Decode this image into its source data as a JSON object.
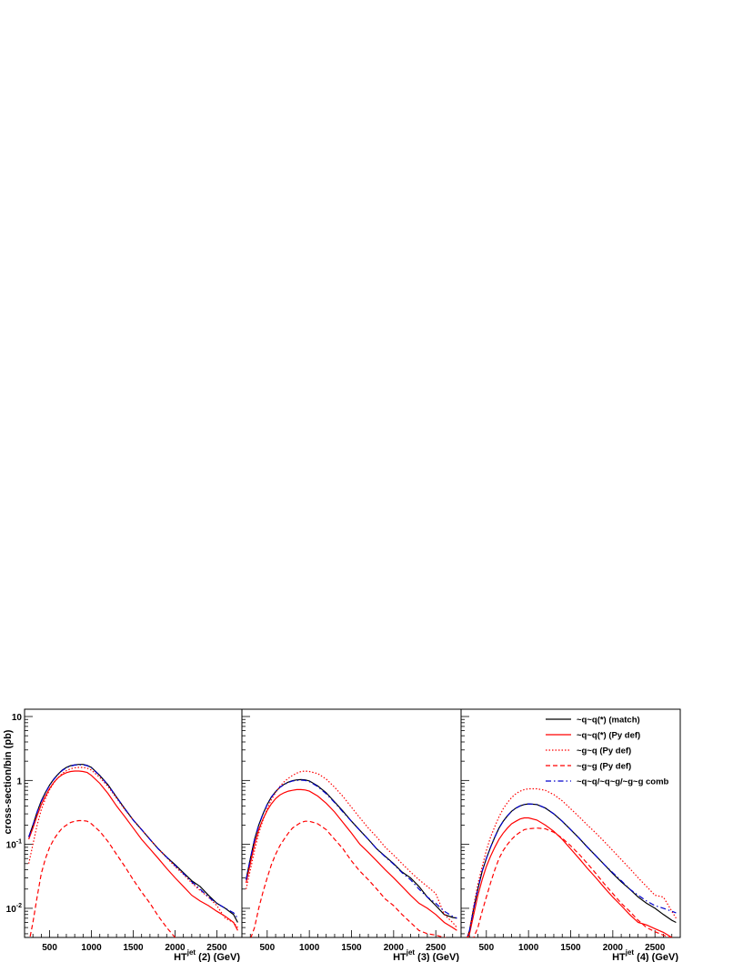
{
  "figure": {
    "ylabel": "cross-section/bin (pb)"
  },
  "legend": {
    "placement": "top-right of right panel",
    "entries": [
      {
        "label": "~q~q(*) (match)",
        "color": "#000000",
        "style": "solid"
      },
      {
        "label": "~q~q(*) (Py def)",
        "color": "#ff0000",
        "style": "solid"
      },
      {
        "label": "~g~q (Py def)",
        "color": "#ff0000",
        "style": "dotted"
      },
      {
        "label": "~g~g (Py def)",
        "color": "#ff0000",
        "style": "dashed"
      },
      {
        "label": "~q~q/~q~g/~g~g comb",
        "color": "#0000cc",
        "style": "dashdot"
      }
    ]
  },
  "chart_data": [
    {
      "type": "line",
      "xlabel_main": "HT",
      "xlabel_sup": "jet",
      "xlabel_rest": "(2) (GeV)",
      "xlim": [
        200,
        2800
      ],
      "ylim": [
        0.0035,
        13
      ],
      "yscale": "log",
      "xticks": [
        500,
        1000,
        1500,
        2000,
        2500
      ],
      "yticks": [
        {
          "v": 0.01,
          "base": "10",
          "exp": "-2"
        },
        {
          "v": 0.1,
          "base": "10",
          "exp": "-1"
        },
        {
          "v": 1,
          "base": "1",
          "exp": ""
        },
        {
          "v": 10,
          "base": "10",
          "exp": ""
        }
      ],
      "x": [
        250,
        300,
        350,
        400,
        450,
        500,
        550,
        600,
        650,
        700,
        750,
        800,
        850,
        900,
        950,
        1000,
        1100,
        1200,
        1300,
        1400,
        1500,
        1600,
        1700,
        1800,
        1900,
        2000,
        2100,
        2200,
        2300,
        2400,
        2500,
        2600,
        2700,
        2750
      ],
      "series": [
        {
          "name": "~q~q(*) (match)",
          "color": "#000000",
          "style": "solid",
          "values": [
            0.13,
            0.2,
            0.32,
            0.48,
            0.65,
            0.85,
            1.05,
            1.25,
            1.45,
            1.6,
            1.7,
            1.75,
            1.78,
            1.78,
            1.72,
            1.6,
            1.2,
            0.85,
            0.55,
            0.36,
            0.24,
            0.17,
            0.12,
            0.085,
            0.063,
            0.048,
            0.036,
            0.027,
            0.022,
            0.016,
            0.012,
            0.01,
            0.008,
            0.006
          ]
        },
        {
          "name": "~q~q(*) (Py def)",
          "color": "#ff0000",
          "style": "solid",
          "values": [
            0.12,
            0.18,
            0.28,
            0.42,
            0.57,
            0.75,
            0.93,
            1.1,
            1.23,
            1.32,
            1.38,
            1.4,
            1.4,
            1.38,
            1.33,
            1.2,
            0.9,
            0.62,
            0.4,
            0.27,
            0.18,
            0.12,
            0.085,
            0.06,
            0.042,
            0.03,
            0.022,
            0.016,
            0.013,
            0.011,
            0.009,
            0.0075,
            0.006,
            0.0045
          ]
        },
        {
          "name": "~g~q (Py def)",
          "color": "#ff0000",
          "style": "dotted",
          "values": [
            0.05,
            0.1,
            0.2,
            0.35,
            0.52,
            0.72,
            0.92,
            1.1,
            1.28,
            1.42,
            1.52,
            1.58,
            1.6,
            1.6,
            1.55,
            1.45,
            1.12,
            0.8,
            0.53,
            0.35,
            0.24,
            0.17,
            0.12,
            0.085,
            0.062,
            0.045,
            0.034,
            0.025,
            0.019,
            0.015,
            0.011,
            0.007,
            0.006,
            0.005
          ]
        },
        {
          "name": "~g~g (Py def)",
          "color": "#ff0000",
          "style": "dashed",
          "values": [
            0.0028,
            0.006,
            0.015,
            0.035,
            0.06,
            0.09,
            0.12,
            0.15,
            0.18,
            0.2,
            0.22,
            0.23,
            0.235,
            0.235,
            0.23,
            0.21,
            0.16,
            0.11,
            0.07,
            0.045,
            0.028,
            0.018,
            0.012,
            0.0075,
            0.005,
            0.0035,
            0.003,
            0.003,
            0.003,
            0.003,
            0.003,
            0.003,
            0.003,
            0.003
          ]
        },
        {
          "name": "~q~q/~q~g/~g~g comb",
          "color": "#0000cc",
          "style": "dashdot",
          "values": [
            0.13,
            0.2,
            0.32,
            0.47,
            0.64,
            0.84,
            1.04,
            1.24,
            1.43,
            1.58,
            1.68,
            1.74,
            1.76,
            1.76,
            1.7,
            1.58,
            1.19,
            0.84,
            0.55,
            0.36,
            0.24,
            0.17,
            0.12,
            0.085,
            0.063,
            0.047,
            0.035,
            0.026,
            0.02,
            0.015,
            0.012,
            0.01,
            0.0085,
            0.007
          ]
        }
      ]
    },
    {
      "type": "line",
      "xlabel_main": "HT",
      "xlabel_sup": "jet",
      "xlabel_rest": "(3) (GeV)",
      "xlim": [
        200,
        2800
      ],
      "ylim": [
        0.0035,
        13
      ],
      "yscale": "log",
      "xticks": [
        500,
        1000,
        1500,
        2000,
        2500
      ],
      "x": [
        250,
        300,
        350,
        400,
        450,
        500,
        550,
        600,
        650,
        700,
        750,
        800,
        850,
        900,
        950,
        1000,
        1100,
        1200,
        1300,
        1400,
        1500,
        1600,
        1700,
        1800,
        1900,
        2000,
        2100,
        2200,
        2300,
        2400,
        2500,
        2600,
        2700,
        2750
      ],
      "series": [
        {
          "name": "~q~q(*) (match)",
          "color": "#000000",
          "style": "solid",
          "values": [
            0.028,
            0.06,
            0.12,
            0.2,
            0.3,
            0.42,
            0.55,
            0.67,
            0.78,
            0.87,
            0.94,
            0.99,
            1.02,
            1.03,
            1.02,
            0.98,
            0.82,
            0.64,
            0.46,
            0.33,
            0.23,
            0.165,
            0.12,
            0.085,
            0.065,
            0.05,
            0.037,
            0.03,
            0.022,
            0.015,
            0.011,
            0.008,
            0.0072,
            0.007
          ]
        },
        {
          "name": "~q~q(*) (Py def)",
          "color": "#ff0000",
          "style": "solid",
          "values": [
            0.025,
            0.05,
            0.1,
            0.17,
            0.25,
            0.34,
            0.43,
            0.52,
            0.59,
            0.64,
            0.68,
            0.7,
            0.72,
            0.72,
            0.71,
            0.68,
            0.57,
            0.44,
            0.32,
            0.22,
            0.15,
            0.1,
            0.075,
            0.055,
            0.04,
            0.03,
            0.022,
            0.016,
            0.012,
            0.01,
            0.008,
            0.006,
            0.005,
            0.0045
          ]
        },
        {
          "name": "~g~q (Py def)",
          "color": "#ff0000",
          "style": "dotted",
          "values": [
            0.02,
            0.04,
            0.08,
            0.15,
            0.24,
            0.36,
            0.5,
            0.65,
            0.8,
            0.95,
            1.08,
            1.2,
            1.3,
            1.38,
            1.4,
            1.38,
            1.28,
            1.05,
            0.78,
            0.56,
            0.38,
            0.26,
            0.18,
            0.13,
            0.09,
            0.068,
            0.05,
            0.037,
            0.028,
            0.022,
            0.017,
            0.008,
            0.006,
            0.005
          ]
        },
        {
          "name": "~g~g (Py def)",
          "color": "#ff0000",
          "style": "dashed",
          "values": [
            0.0028,
            0.0033,
            0.005,
            0.01,
            0.018,
            0.03,
            0.048,
            0.07,
            0.095,
            0.12,
            0.15,
            0.18,
            0.2,
            0.22,
            0.23,
            0.23,
            0.21,
            0.17,
            0.12,
            0.085,
            0.055,
            0.038,
            0.028,
            0.02,
            0.014,
            0.011,
            0.008,
            0.006,
            0.0045,
            0.004,
            0.0038,
            0.0035,
            0.0032,
            0.003
          ]
        },
        {
          "name": "~q~q/~q~g/~g~g comb",
          "color": "#0000cc",
          "style": "dashdot",
          "values": [
            0.028,
            0.06,
            0.12,
            0.2,
            0.3,
            0.42,
            0.55,
            0.67,
            0.78,
            0.86,
            0.93,
            0.98,
            1.0,
            1.01,
            1.0,
            0.96,
            0.8,
            0.62,
            0.45,
            0.32,
            0.23,
            0.165,
            0.12,
            0.085,
            0.064,
            0.049,
            0.036,
            0.028,
            0.02,
            0.015,
            0.012,
            0.009,
            0.0075,
            0.007
          ]
        }
      ]
    },
    {
      "type": "line",
      "xlabel_main": "HT",
      "xlabel_sup": "jet",
      "xlabel_rest": "(4) (GeV)",
      "xlim": [
        200,
        2800
      ],
      "ylim": [
        0.0035,
        13
      ],
      "yscale": "log",
      "xticks": [
        500,
        1000,
        1500,
        2000,
        2500
      ],
      "x": [
        250,
        300,
        350,
        400,
        450,
        500,
        550,
        600,
        650,
        700,
        750,
        800,
        850,
        900,
        950,
        1000,
        1100,
        1200,
        1300,
        1400,
        1500,
        1600,
        1700,
        1800,
        1900,
        2000,
        2100,
        2200,
        2300,
        2400,
        2500,
        2600,
        2700,
        2750
      ],
      "series": [
        {
          "name": "~q~q(*) (match)",
          "color": "#000000",
          "style": "solid",
          "values": [
            0.0028,
            0.0045,
            0.01,
            0.02,
            0.038,
            0.06,
            0.09,
            0.13,
            0.18,
            0.23,
            0.28,
            0.33,
            0.37,
            0.4,
            0.42,
            0.43,
            0.42,
            0.37,
            0.3,
            0.23,
            0.17,
            0.125,
            0.09,
            0.066,
            0.048,
            0.035,
            0.026,
            0.02,
            0.015,
            0.012,
            0.01,
            0.008,
            0.0065,
            0.006
          ]
        },
        {
          "name": "~q~q(*) (Py def)",
          "color": "#ff0000",
          "style": "solid",
          "values": [
            0.0028,
            0.004,
            0.008,
            0.016,
            0.028,
            0.045,
            0.065,
            0.09,
            0.12,
            0.15,
            0.18,
            0.21,
            0.23,
            0.25,
            0.26,
            0.26,
            0.24,
            0.2,
            0.16,
            0.12,
            0.085,
            0.06,
            0.042,
            0.03,
            0.021,
            0.015,
            0.011,
            0.008,
            0.006,
            0.0055,
            0.0048,
            0.0042,
            0.0035,
            0.003
          ]
        },
        {
          "name": "~g~q (Py def)",
          "color": "#ff0000",
          "style": "dotted",
          "values": [
            0.0028,
            0.0045,
            0.011,
            0.024,
            0.045,
            0.08,
            0.13,
            0.19,
            0.27,
            0.36,
            0.45,
            0.54,
            0.62,
            0.68,
            0.72,
            0.74,
            0.74,
            0.7,
            0.6,
            0.48,
            0.36,
            0.27,
            0.2,
            0.15,
            0.11,
            0.08,
            0.058,
            0.042,
            0.03,
            0.022,
            0.016,
            0.015,
            0.009,
            0.007
          ]
        },
        {
          "name": "~g~g (Py def)",
          "color": "#ff0000",
          "style": "dashed",
          "values": [
            0.0028,
            0.003,
            0.0035,
            0.005,
            0.009,
            0.015,
            0.025,
            0.04,
            0.06,
            0.08,
            0.1,
            0.12,
            0.14,
            0.155,
            0.17,
            0.175,
            0.18,
            0.175,
            0.155,
            0.125,
            0.095,
            0.07,
            0.05,
            0.035,
            0.024,
            0.017,
            0.012,
            0.009,
            0.0065,
            0.005,
            0.0043,
            0.0038,
            0.0034,
            0.003
          ]
        },
        {
          "name": "~q~q/~q~g/~g~g comb",
          "color": "#0000cc",
          "style": "dashdot",
          "values": [
            0.0028,
            0.0045,
            0.01,
            0.02,
            0.038,
            0.06,
            0.09,
            0.13,
            0.18,
            0.23,
            0.28,
            0.33,
            0.37,
            0.4,
            0.42,
            0.43,
            0.42,
            0.37,
            0.3,
            0.23,
            0.17,
            0.125,
            0.09,
            0.066,
            0.048,
            0.036,
            0.027,
            0.02,
            0.016,
            0.013,
            0.011,
            0.01,
            0.009,
            0.0085
          ]
        }
      ]
    }
  ]
}
